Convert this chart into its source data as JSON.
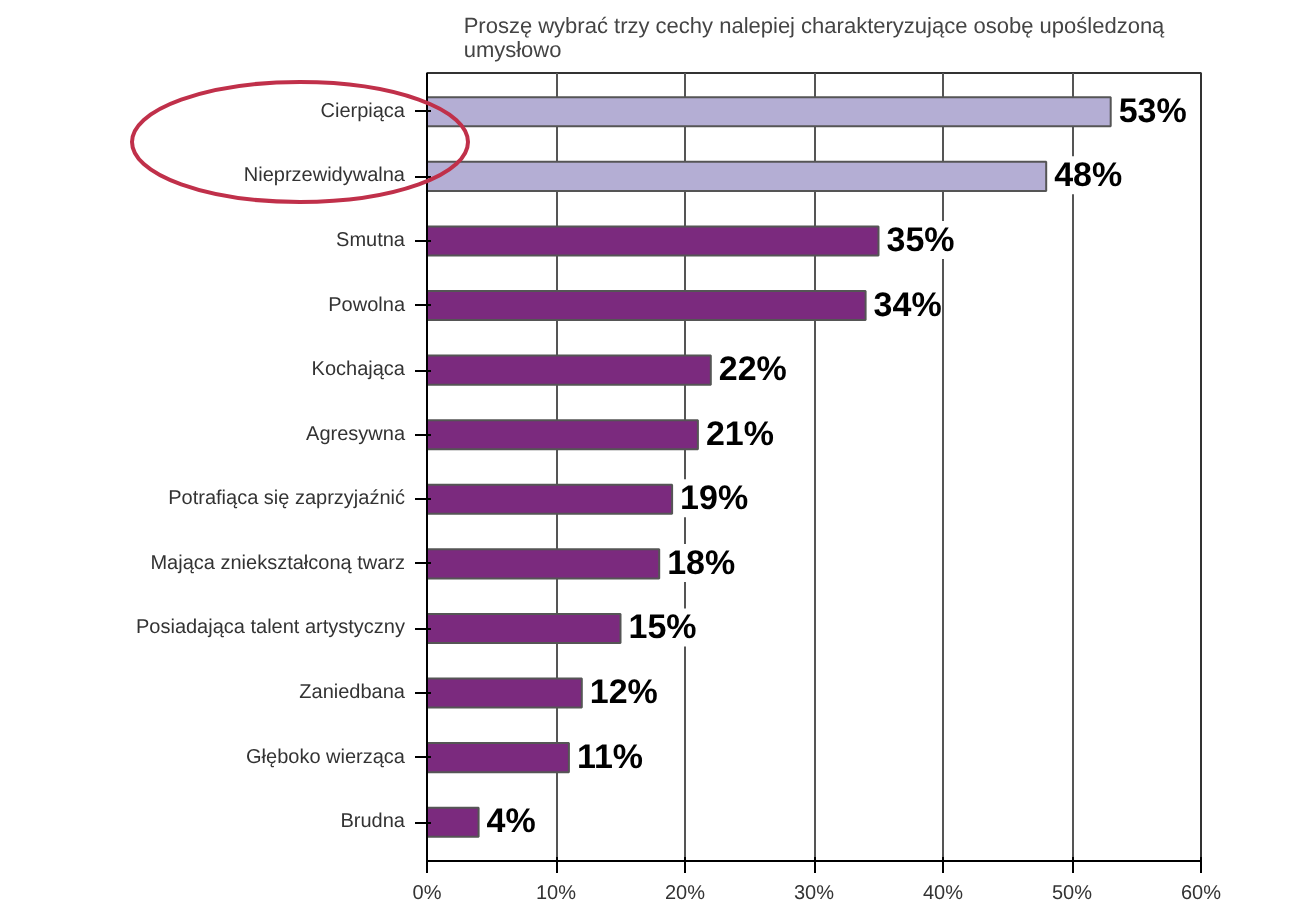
{
  "chart_data": {
    "type": "bar",
    "orientation": "horizontal",
    "title": "Proszę wybrać trzy cechy nalepiej charakteryzujące osobę upośledzoną umysłowo",
    "categories": [
      "Cierpiąca",
      "Nieprzewidywalna",
      "Smutna",
      "Powolna",
      "Kochająca",
      "Agresywna",
      "Potrafiąca się zaprzyjaźnić",
      "Mająca zniekształconą twarz",
      "Posiadająca talent artystyczny",
      "Zaniedbana",
      "Głęboko wierząca",
      "Brudna"
    ],
    "values": [
      53,
      48,
      35,
      34,
      22,
      21,
      19,
      18,
      15,
      12,
      11,
      4
    ],
    "colors": [
      "#b4aed4",
      "#b4aed4",
      "#7b2a7e",
      "#7b2a7e",
      "#7b2a7e",
      "#7b2a7e",
      "#7b2a7e",
      "#7b2a7e",
      "#7b2a7e",
      "#7b2a7e",
      "#7b2a7e",
      "#7b2a7e"
    ],
    "value_labels": [
      "53%",
      "48%",
      "35%",
      "34%",
      "22%",
      "21%",
      "19%",
      "18%",
      "15%",
      "12%",
      "11%",
      "4%"
    ],
    "xlim": [
      0,
      60
    ],
    "xticks": [
      {
        "value": 0,
        "label": "0%"
      },
      {
        "value": 10,
        "label": "10%"
      },
      {
        "value": 20,
        "label": "20%"
      },
      {
        "value": 30,
        "label": "30%"
      },
      {
        "value": 40,
        "label": "40%"
      },
      {
        "value": 50,
        "label": "50%"
      },
      {
        "value": 60,
        "label": "60%"
      }
    ],
    "grid": "x"
  }
}
